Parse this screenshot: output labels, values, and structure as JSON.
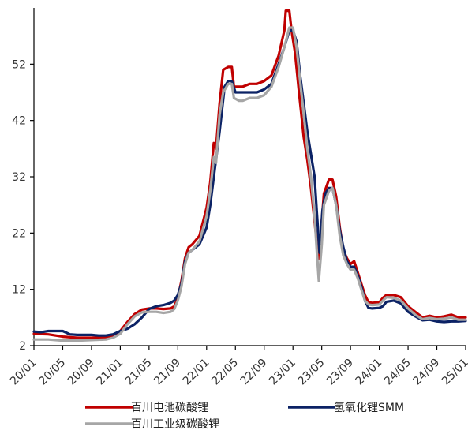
{
  "chart_data": {
    "type": "line",
    "title": "",
    "xlabel": "",
    "ylabel": "",
    "ylim": [
      2,
      62
    ],
    "yticks": [
      2,
      12,
      22,
      32,
      42,
      52
    ],
    "x_tick_labels": [
      "20/01",
      "20/05",
      "20/09",
      "21/01",
      "21/05",
      "21/09",
      "22/01",
      "22/05",
      "22/09",
      "23/01",
      "23/05",
      "23/09",
      "24/01",
      "24/05",
      "24/09",
      "25/01"
    ],
    "x_tick_months": [
      0,
      4,
      8,
      12,
      16,
      20,
      24,
      28,
      32,
      36,
      40,
      44,
      48,
      52,
      56,
      60
    ],
    "x_range_months": [
      0,
      60
    ],
    "legend_position": "bottom",
    "grid": false,
    "series": [
      {
        "name": "百川电池碳酸锂",
        "color": "#c00000",
        "points": [
          [
            0,
            4.1
          ],
          [
            2,
            4.0
          ],
          [
            4,
            3.6
          ],
          [
            6,
            3.4
          ],
          [
            8,
            3.4
          ],
          [
            10,
            3.5
          ],
          [
            11,
            3.8
          ],
          [
            12,
            4.6
          ],
          [
            13,
            6.2
          ],
          [
            14,
            7.6
          ],
          [
            15,
            8.4
          ],
          [
            16,
            8.6
          ],
          [
            17,
            8.6
          ],
          [
            18,
            8.5
          ],
          [
            19,
            8.6
          ],
          [
            19.5,
            9.0
          ],
          [
            20,
            10.5
          ],
          [
            20.5,
            13.5
          ],
          [
            21,
            17.5
          ],
          [
            21.5,
            19.5
          ],
          [
            22,
            20.0
          ],
          [
            23,
            21.5
          ],
          [
            24,
            26.5
          ],
          [
            24.5,
            31.0
          ],
          [
            25,
            38.0
          ],
          [
            25.3,
            37.0
          ],
          [
            25.8,
            45.0
          ],
          [
            26.3,
            51.0
          ],
          [
            27,
            51.5
          ],
          [
            27.5,
            51.5
          ],
          [
            27.8,
            48.0
          ],
          [
            28.5,
            48.0
          ],
          [
            29,
            48.0
          ],
          [
            30,
            48.5
          ],
          [
            31,
            48.5
          ],
          [
            32,
            49.0
          ],
          [
            33,
            50.0
          ],
          [
            34,
            53.5
          ],
          [
            34.8,
            58.0
          ],
          [
            35,
            61.5
          ],
          [
            35.5,
            61.5
          ],
          [
            35.8,
            58.0
          ],
          [
            36.3,
            54.0
          ],
          [
            36.8,
            47.5
          ],
          [
            37.5,
            39.0
          ],
          [
            38,
            35.0
          ],
          [
            38.5,
            30.0
          ],
          [
            39,
            24.0
          ],
          [
            39.3,
            20.5
          ],
          [
            39.6,
            17.5
          ],
          [
            40,
            24.0
          ],
          [
            40.3,
            29.0
          ],
          [
            41,
            31.5
          ],
          [
            41.5,
            31.5
          ],
          [
            42,
            28.5
          ],
          [
            42.5,
            23.0
          ],
          [
            43,
            19.0
          ],
          [
            43.5,
            17.5
          ],
          [
            44,
            16.5
          ],
          [
            44.5,
            17.0
          ],
          [
            45,
            15.0
          ],
          [
            45.5,
            13.0
          ],
          [
            46,
            11.0
          ],
          [
            46.5,
            9.7
          ],
          [
            47,
            9.6
          ],
          [
            48,
            9.7
          ],
          [
            48.5,
            10.5
          ],
          [
            49,
            11.0
          ],
          [
            50,
            11.0
          ],
          [
            51,
            10.6
          ],
          [
            52,
            9.0
          ],
          [
            53,
            8.0
          ],
          [
            54,
            7.0
          ],
          [
            55,
            7.3
          ],
          [
            56,
            7.0
          ],
          [
            57,
            7.2
          ],
          [
            58,
            7.5
          ],
          [
            59,
            7.0
          ],
          [
            60,
            7.0
          ]
        ]
      },
      {
        "name": "氢氧化锂SMM",
        "color": "#0b2265",
        "points": [
          [
            0,
            4.5
          ],
          [
            1,
            4.4
          ],
          [
            2,
            4.6
          ],
          [
            3,
            4.6
          ],
          [
            4,
            4.6
          ],
          [
            5,
            4.0
          ],
          [
            6,
            3.9
          ],
          [
            7,
            3.9
          ],
          [
            8,
            3.9
          ],
          [
            9,
            3.8
          ],
          [
            10,
            3.8
          ],
          [
            11,
            4.0
          ],
          [
            12,
            4.6
          ],
          [
            13,
            5.0
          ],
          [
            14,
            5.8
          ],
          [
            15,
            7.0
          ],
          [
            16,
            8.5
          ],
          [
            17,
            9.0
          ],
          [
            18,
            9.2
          ],
          [
            19,
            9.6
          ],
          [
            19.5,
            10.0
          ],
          [
            20,
            11.0
          ],
          [
            20.5,
            13.0
          ],
          [
            21,
            17.0
          ],
          [
            21.5,
            18.5
          ],
          [
            22,
            19.0
          ],
          [
            23,
            20.0
          ],
          [
            24,
            23.0
          ],
          [
            24.5,
            27.0
          ],
          [
            25,
            32.0
          ],
          [
            25.8,
            40.0
          ],
          [
            26.5,
            48.0
          ],
          [
            27,
            49.0
          ],
          [
            27.5,
            49.0
          ],
          [
            28,
            47.0
          ],
          [
            29,
            47.0
          ],
          [
            30,
            47.0
          ],
          [
            31,
            47.0
          ],
          [
            32,
            47.5
          ],
          [
            33,
            48.5
          ],
          [
            34,
            52.0
          ],
          [
            34.8,
            55.0
          ],
          [
            35.5,
            58.0
          ],
          [
            36,
            58.0
          ],
          [
            36.5,
            56.0
          ],
          [
            37,
            50.0
          ],
          [
            37.5,
            45.0
          ],
          [
            38,
            40.0
          ],
          [
            38.5,
            36.0
          ],
          [
            39,
            32.0
          ],
          [
            39.3,
            26.0
          ],
          [
            39.7,
            18.5
          ],
          [
            40.1,
            26.0
          ],
          [
            40.5,
            29.0
          ],
          [
            41,
            30.0
          ],
          [
            41.5,
            30.0
          ],
          [
            42,
            27.0
          ],
          [
            42.5,
            22.5
          ],
          [
            43,
            19.5
          ],
          [
            43.5,
            17.0
          ],
          [
            44,
            16.0
          ],
          [
            44.5,
            16.0
          ],
          [
            45,
            14.5
          ],
          [
            45.5,
            12.5
          ],
          [
            46,
            10.0
          ],
          [
            46.5,
            8.7
          ],
          [
            47,
            8.6
          ],
          [
            48,
            8.7
          ],
          [
            48.5,
            9.0
          ],
          [
            49,
            9.8
          ],
          [
            50,
            10.0
          ],
          [
            51,
            9.5
          ],
          [
            52,
            8.0
          ],
          [
            53,
            7.2
          ],
          [
            54,
            6.5
          ],
          [
            55,
            6.6
          ],
          [
            56,
            6.3
          ],
          [
            57,
            6.2
          ],
          [
            58,
            6.3
          ],
          [
            59,
            6.3
          ],
          [
            60,
            6.4
          ]
        ]
      },
      {
        "name": "百川工业级碳酸锂",
        "color": "#a6a6a6",
        "points": [
          [
            0,
            3.1
          ],
          [
            2,
            3.1
          ],
          [
            4,
            2.9
          ],
          [
            6,
            2.9
          ],
          [
            8,
            3.0
          ],
          [
            10,
            3.1
          ],
          [
            11,
            3.4
          ],
          [
            12,
            4.1
          ],
          [
            13,
            5.8
          ],
          [
            14,
            7.2
          ],
          [
            15,
            7.9
          ],
          [
            16,
            8.0
          ],
          [
            17,
            8.0
          ],
          [
            18,
            7.8
          ],
          [
            19,
            8.0
          ],
          [
            19.5,
            8.5
          ],
          [
            20,
            10.0
          ],
          [
            20.5,
            12.5
          ],
          [
            21,
            16.5
          ],
          [
            21.5,
            18.5
          ],
          [
            22,
            19.0
          ],
          [
            23,
            20.5
          ],
          [
            24,
            25.0
          ],
          [
            24.5,
            29.5
          ],
          [
            25,
            35.5
          ],
          [
            25.3,
            34.5
          ],
          [
            25.8,
            43.0
          ],
          [
            26.3,
            47.0
          ],
          [
            27,
            48.5
          ],
          [
            27.5,
            48.5
          ],
          [
            27.8,
            46.0
          ],
          [
            28.5,
            45.5
          ],
          [
            29,
            45.5
          ],
          [
            30,
            46.0
          ],
          [
            31,
            46.0
          ],
          [
            32,
            46.5
          ],
          [
            33,
            48.0
          ],
          [
            34,
            51.5
          ],
          [
            34.8,
            55.0
          ],
          [
            35.5,
            58.5
          ],
          [
            36,
            58.5
          ],
          [
            36.5,
            55.0
          ],
          [
            37,
            49.0
          ],
          [
            37.5,
            43.0
          ],
          [
            38,
            37.0
          ],
          [
            38.5,
            32.0
          ],
          [
            39,
            25.0
          ],
          [
            39.3,
            19.0
          ],
          [
            39.6,
            13.5
          ],
          [
            40,
            20.0
          ],
          [
            40.3,
            27.0
          ],
          [
            41,
            29.5
          ],
          [
            41.5,
            30.0
          ],
          [
            42,
            27.0
          ],
          [
            42.5,
            21.5
          ],
          [
            43,
            18.0
          ],
          [
            43.5,
            16.5
          ],
          [
            44,
            15.5
          ],
          [
            44.5,
            15.5
          ],
          [
            45,
            14.0
          ],
          [
            45.5,
            12.0
          ],
          [
            46,
            10.0
          ],
          [
            46.5,
            9.3
          ],
          [
            47,
            9.2
          ],
          [
            48,
            9.3
          ],
          [
            48.5,
            10.0
          ],
          [
            49,
            10.6
          ],
          [
            50,
            10.5
          ],
          [
            51,
            10.0
          ],
          [
            52,
            8.6
          ],
          [
            53,
            7.5
          ],
          [
            54,
            6.7
          ],
          [
            55,
            6.9
          ],
          [
            56,
            6.7
          ],
          [
            57,
            6.8
          ],
          [
            58,
            7.0
          ],
          [
            59,
            6.6
          ],
          [
            60,
            6.6
          ]
        ]
      }
    ]
  }
}
